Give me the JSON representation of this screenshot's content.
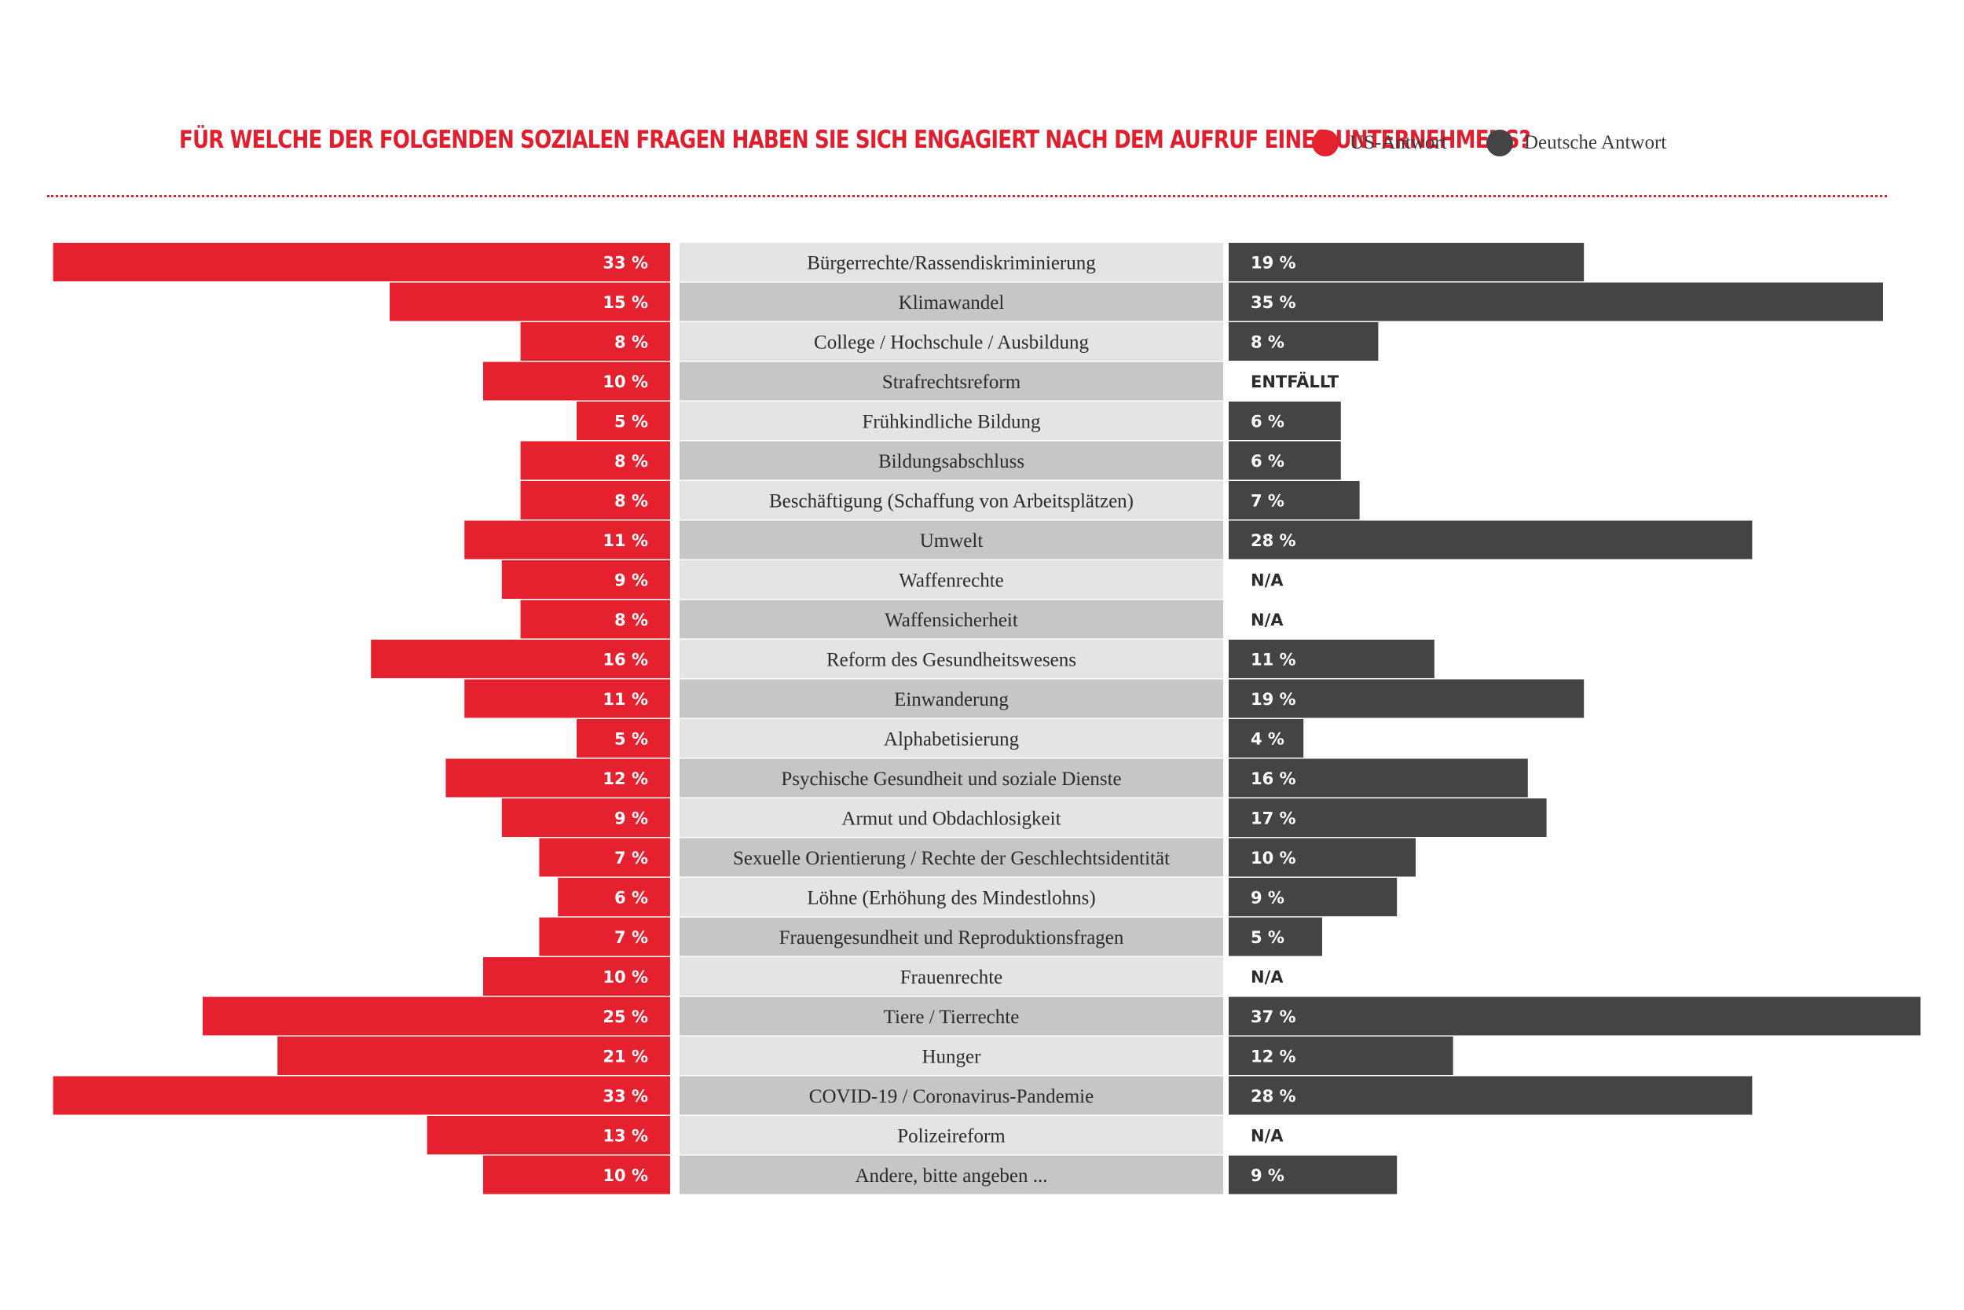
{
  "chart_data": {
    "type": "bar",
    "title": "FÜR WELCHE DER FOLGENDEN SOZIALEN FRAGEN HABEN SIE SICH ENGAGIERT NACH DEM AUFRUF EINES UNTERNEHMENS?",
    "legend": [
      {
        "label": "US-Antwort",
        "color": "#e5202f"
      },
      {
        "label": "Deutsche Antwort",
        "color": "#444446"
      }
    ],
    "categories": [
      "Bürgerrechte/Rassendiskriminierung",
      "Klimawandel",
      "College / Hochschule / Ausbildung",
      "Strafrechtsreform",
      "Frühkindliche Bildung",
      "Bildungsabschluss",
      "Beschäftigung (Schaffung von Arbeitsplätzen)",
      "Umwelt",
      "Waffenrechte",
      "Waffensicherheit",
      "Reform des Gesundheitswesens",
      "Einwanderung",
      "Alphabetisierung",
      "Psychische Gesundheit und soziale Dienste",
      "Armut und Obdachlosigkeit",
      "Sexuelle Orientierung / Rechte der Geschlechtsidentität",
      "Löhne (Erhöhung des Mindestlohns)",
      "Frauengesundheit und Reproduktionsfragen",
      "Frauenrechte",
      "Tiere / Tierrechte",
      "Hunger",
      "COVID-19 / Coronavirus-Pandemie",
      "Polizeireform",
      "Andere, bitte angeben ..."
    ],
    "series": [
      {
        "name": "US-Antwort",
        "color": "#e5202f",
        "values": [
          33,
          15,
          8,
          10,
          5,
          8,
          8,
          11,
          9,
          8,
          16,
          11,
          5,
          12,
          9,
          7,
          6,
          7,
          10,
          25,
          21,
          33,
          13,
          10
        ],
        "labels": [
          "33 %",
          "15 %",
          "8 %",
          "10 %",
          "5 %",
          "8 %",
          "8 %",
          "11 %",
          "9 %",
          "8 %",
          "16 %",
          "11 %",
          "5 %",
          "12 %",
          "9 %",
          "7 %",
          "6 %",
          "7 %",
          "10 %",
          "25 %",
          "21 %",
          "33 %",
          "13 %",
          "10 %"
        ]
      },
      {
        "name": "Deutsche Antwort",
        "color": "#444446",
        "values": [
          19,
          35,
          8,
          null,
          6,
          6,
          7,
          28,
          null,
          null,
          11,
          19,
          4,
          16,
          17,
          10,
          9,
          5,
          null,
          37,
          12,
          28,
          null,
          9
        ],
        "labels": [
          "19 %",
          "35 %",
          "8 %",
          "ENTFÄLLT",
          "6 %",
          "6 %",
          "7 %",
          "28 %",
          "N/A",
          "N/A",
          "11 %",
          "19 %",
          "4 %",
          "16 %",
          "17 %",
          "10 %",
          "9 %",
          "5 %",
          "N/A",
          "37 %",
          "12 %",
          "28 %",
          "N/A",
          "9 %"
        ]
      }
    ],
    "xlim": [
      0,
      37
    ],
    "grid": false,
    "legend_position": "top-right",
    "category_stripe_colors": [
      "#e4e4e5",
      "#c6c6c7"
    ]
  }
}
